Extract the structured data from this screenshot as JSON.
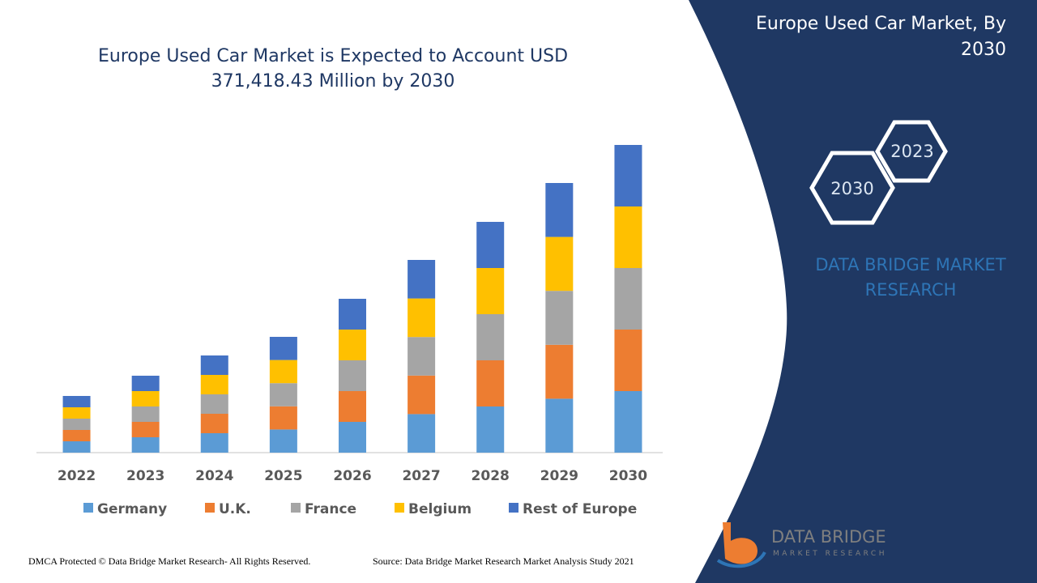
{
  "chart_data": {
    "type": "bar",
    "stacked": true,
    "title": [
      "Europe Used Car Market is Expected to Account USD",
      "371,418.43 Million by 2030"
    ],
    "categories": [
      "2022",
      "2023",
      "2024",
      "2025",
      "2026",
      "2027",
      "2028",
      "2029",
      "2030"
    ],
    "series": [
      {
        "name": "Germany",
        "color": "#5b9bd5",
        "values": [
          14,
          19,
          24,
          28.6,
          38,
          47.6,
          57,
          66.6,
          76
        ]
      },
      {
        "name": "U.K.",
        "color": "#ed7d31",
        "values": [
          14,
          19,
          24,
          28.6,
          38,
          47.6,
          57,
          66.6,
          76
        ]
      },
      {
        "name": "France",
        "color": "#a5a5a5",
        "values": [
          14,
          19,
          24,
          28.6,
          38,
          47.6,
          57,
          66.6,
          76
        ]
      },
      {
        "name": "Belgium",
        "color": "#ffc000",
        "values": [
          14,
          19,
          24,
          28.6,
          38,
          47.6,
          57,
          66.6,
          76
        ]
      },
      {
        "name": "Rest of Europe",
        "color": "#4472c4",
        "values": [
          14,
          19,
          24,
          28.6,
          38,
          47.6,
          57,
          66.6,
          76
        ]
      }
    ],
    "legend": "bottom"
  },
  "panel": {
    "title": [
      "Europe Used Car Market, By",
      "2030"
    ],
    "hex_front": "2030",
    "hex_back": "2023",
    "brand": [
      "DATA BRIDGE MARKET",
      "RESEARCH"
    ]
  },
  "logo": {
    "name": "DATA BRIDGE",
    "tagline": "MARKET RESEARCH"
  },
  "footer": {
    "copyright": "DMCA Protected © Data Bridge Market Research- All Rights Reserved.",
    "source": "Source: Data Bridge Market Research Market Analysis Study 2021"
  }
}
